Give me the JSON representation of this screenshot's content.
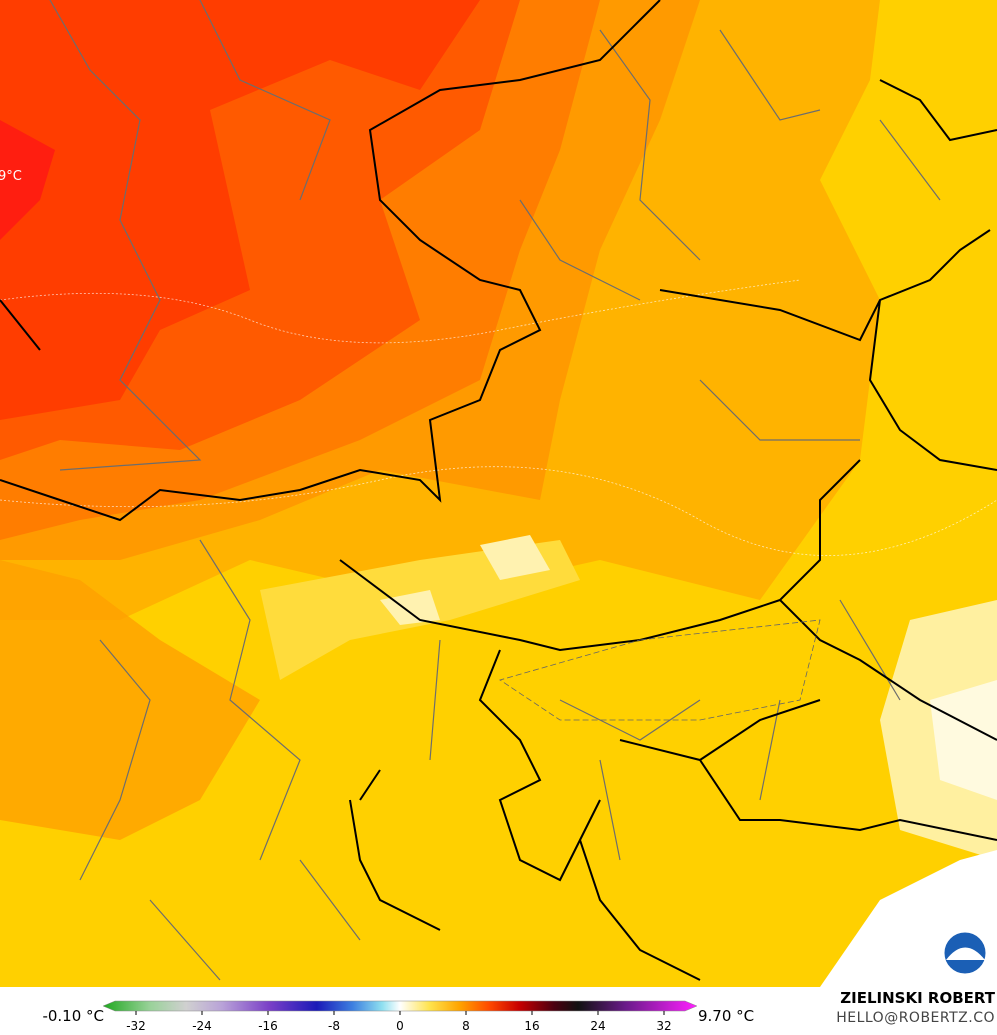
{
  "map": {
    "corner_label": "9°C"
  },
  "colorbar": {
    "range": [
      -36,
      36
    ],
    "ticks": [
      -32,
      -24,
      -16,
      -8,
      0,
      8,
      16,
      24,
      32
    ],
    "min_label": "-0.10 °C",
    "max_label": "9.70 °C"
  },
  "credit": {
    "name": "ZIELINSKI ROBERT",
    "email": "HELLO@ROBERTZ.CO"
  }
}
